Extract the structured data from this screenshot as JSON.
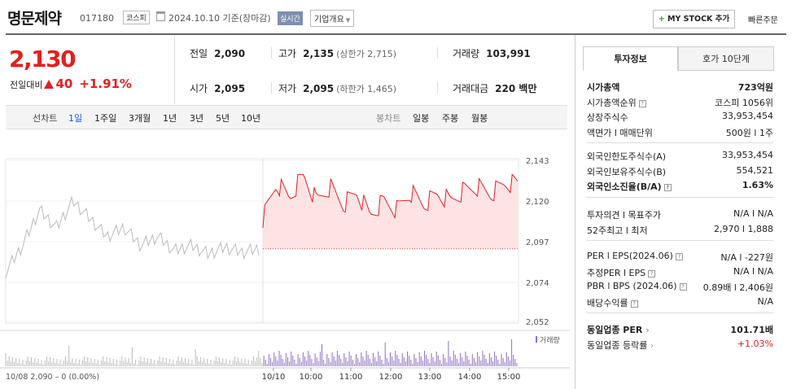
{
  "header": {
    "name": "명문제약",
    "code": "017180",
    "market": "코스피",
    "date": "2024.10.10 기준(장마감)",
    "realtime": "실시간",
    "company_info": "기업개요",
    "mystock": "MY STOCK 추가",
    "quick_order": "빠른주문"
  },
  "quote": {
    "price": "2,130",
    "diff_label": "전일대비",
    "diff_value": "40",
    "diff_pct": "+1.91%",
    "prev_label": "전일",
    "prev": "2,090",
    "high_label": "고가",
    "high": "2,135",
    "upper_limit": "(상한가 2,715)",
    "volume_label": "거래량",
    "volume": "103,991",
    "open_label": "시가",
    "open": "2,095",
    "low_label": "저가",
    "low": "2,095",
    "lower_limit": "(하한가 1,465)",
    "amount_label": "거래대금",
    "amount": "220 백만"
  },
  "tabs": {
    "line_label": "선차트",
    "line": [
      "1일",
      "1주일",
      "3개월",
      "1년",
      "3년",
      "5년",
      "10년"
    ],
    "candle_label": "봉차트",
    "candle": [
      "일봉",
      "주봉",
      "월봉"
    ]
  },
  "chart_data": {
    "type": "line",
    "yticks": [
      "2,143",
      "2,120",
      "2,097",
      "2,074",
      "2,052"
    ],
    "ylim": [
      2052,
      2143
    ],
    "xticks": [
      "10/10",
      "10:00",
      "11:00",
      "12:00",
      "13:00",
      "14:00",
      "15:00"
    ],
    "prev_day_label": "10/08  2,090 – 0 (0.00%)",
    "volume_legend": "거래량",
    "series": [
      {
        "values": [
          2080,
          2095,
          2115,
          2105,
          2120,
          2110,
          2100,
          2105,
          2095,
          2100,
          2092,
          2095,
          2090,
          2094,
          2091,
          2093
        ]
      },
      {
        "values": [
          2110,
          2130,
          2122,
          2135,
          2120,
          2128,
          2118,
          2125,
          2112,
          2120,
          2115,
          2125,
          2118,
          2124,
          2120,
          2126,
          2128,
          2124,
          2130,
          2130
        ]
      }
    ]
  },
  "panel": {
    "tab_invest": "투자정보",
    "tab_order": "호가 10단계",
    "rows1": [
      {
        "k": "시가총액",
        "v": "723억원"
      },
      {
        "k": "시가총액순위",
        "v": "코스피 1056위"
      },
      {
        "k": "상장주식수",
        "v": "33,953,454"
      },
      {
        "k": "액면가 l 매매단위",
        "v": "500원 l 1주"
      }
    ],
    "rows2": [
      {
        "k": "외국인한도주식수(A)",
        "v": "33,953,454"
      },
      {
        "k": "외국인보유주식수(B)",
        "v": "554,521"
      },
      {
        "k": "외국인소진율(B/A)",
        "v": "1.63%"
      }
    ],
    "rows3": [
      {
        "k": "투자의견 l 목표주가",
        "v": "N/A l N/A"
      },
      {
        "k": "52주최고 l 최저",
        "v": "2,970 l 1,888"
      }
    ],
    "rows4": [
      {
        "k": "PER l EPS(2024.06)",
        "v": "N/A l -227원"
      },
      {
        "k": "추정PER l EPS",
        "v": "N/A l N/A"
      },
      {
        "k": "PBR l BPS (2024.06)",
        "v": "0.89배 l 2,406원"
      },
      {
        "k": "배당수익률",
        "v": "N/A"
      }
    ],
    "rows5": [
      {
        "k": "동일업종 PER",
        "v": "101.71배"
      },
      {
        "k": "동일업종 등락률",
        "v": "+1.03%"
      }
    ]
  }
}
